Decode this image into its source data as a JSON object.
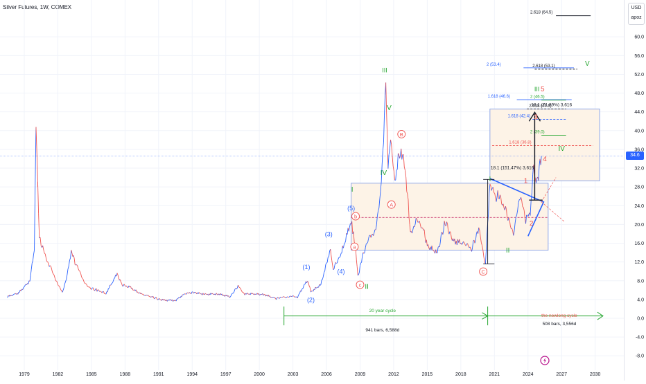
{
  "header": {
    "title": "Silver Futures, 1W, COMEX"
  },
  "axis_panel": {
    "currency": "USD",
    "scale_mode": "apoz",
    "last_price": "34.6"
  },
  "colors": {
    "candle_up": "#2962ff",
    "candle_down": "#ef5350",
    "wave_green": "#26a631",
    "wave_blue": "#2962ff",
    "wave_red": "#ef5350",
    "box_fill": "#fdf3e7",
    "box_border": "#8fa7e8",
    "grid": "#f0f3fa",
    "fib_blue": "#2962ff",
    "fib_green": "#26a631",
    "fib_red": "#ef5350"
  },
  "chart_data": {
    "type": "candlestick-line",
    "title": "Silver Futures, 1W, COMEX",
    "ylim": [
      -9,
      68
    ],
    "xlim": [
      1977.5,
      2031.5
    ],
    "y_ticks": [
      "60.0",
      "56.0",
      "52.0",
      "48.0",
      "44.0",
      "40.0",
      "36.0",
      "32.0",
      "28.0",
      "24.0",
      "20.0",
      "16.0",
      "12.0",
      "8.0",
      "4.0",
      "0.0",
      "-4.0",
      "-8.0"
    ],
    "x_ticks": [
      {
        "x": 1979,
        "label": "1979"
      },
      {
        "x": 1982,
        "label": "1982"
      },
      {
        "x": 1985,
        "label": "1985"
      },
      {
        "x": 1988,
        "label": "1988"
      },
      {
        "x": 1991,
        "label": "1991"
      },
      {
        "x": 1994,
        "label": "1994"
      },
      {
        "x": 1997,
        "label": "1997"
      },
      {
        "x": 2000,
        "label": "2000"
      },
      {
        "x": 2003,
        "label": "2003"
      },
      {
        "x": 2006,
        "label": "2006"
      },
      {
        "x": 2009,
        "label": "2009"
      },
      {
        "x": 2012,
        "label": "2012"
      },
      {
        "x": 2015,
        "label": "2015"
      },
      {
        "x": 2018,
        "label": "2018"
      },
      {
        "x": 2021,
        "label": "2021"
      },
      {
        "x": 2024,
        "label": "2024"
      },
      {
        "x": 2027,
        "label": "2027"
      },
      {
        "x": 2030,
        "label": "2030"
      }
    ],
    "series": [
      {
        "points": [
          [
            1977.5,
            4.6
          ],
          [
            1978.5,
            5.4
          ],
          [
            1979.5,
            8.0
          ],
          [
            1979.9,
            15.0
          ],
          [
            1980.05,
            41.0
          ],
          [
            1980.2,
            30.0
          ],
          [
            1980.35,
            17.0
          ],
          [
            1980.8,
            14.0
          ],
          [
            1981.3,
            11.0
          ],
          [
            1981.9,
            8.0
          ],
          [
            1982.4,
            5.4
          ],
          [
            1982.9,
            10.0
          ],
          [
            1983.2,
            14.5
          ],
          [
            1983.6,
            11.5
          ],
          [
            1984.2,
            8.5
          ],
          [
            1984.8,
            6.5
          ],
          [
            1985.5,
            6.0
          ],
          [
            1986.3,
            5.3
          ],
          [
            1987.3,
            9.5
          ],
          [
            1987.7,
            7.2
          ],
          [
            1988.5,
            6.5
          ],
          [
            1989.4,
            5.2
          ],
          [
            1990.5,
            4.5
          ],
          [
            1991.2,
            3.9
          ],
          [
            1992.5,
            3.8
          ],
          [
            1993.4,
            5.3
          ],
          [
            1994.2,
            5.5
          ],
          [
            1995.1,
            5.1
          ],
          [
            1996.3,
            5.2
          ],
          [
            1997.4,
            4.6
          ],
          [
            1998.1,
            6.9
          ],
          [
            1998.7,
            5.2
          ],
          [
            1999.6,
            5.2
          ],
          [
            2000.5,
            5.0
          ],
          [
            2001.5,
            4.2
          ],
          [
            2002.2,
            4.6
          ],
          [
            2002.8,
            4.6
          ],
          [
            2003.4,
            4.5
          ],
          [
            2004.3,
            8.2
          ],
          [
            2004.6,
            5.6
          ],
          [
            2005.5,
            7.2
          ],
          [
            2006.35,
            14.8
          ],
          [
            2006.6,
            10.6
          ],
          [
            2007.3,
            13.6
          ],
          [
            2008.2,
            20.8
          ],
          [
            2008.55,
            15.8
          ],
          [
            2008.8,
            8.8
          ],
          [
            2009.2,
            13.0
          ],
          [
            2009.9,
            18.0
          ],
          [
            2010.4,
            18.5
          ],
          [
            2010.9,
            29.0
          ],
          [
            2011.3,
            49.0
          ],
          [
            2011.5,
            33.0
          ],
          [
            2011.8,
            38.0
          ],
          [
            2012.1,
            28.5
          ],
          [
            2012.4,
            35.0
          ],
          [
            2012.8,
            34.5
          ],
          [
            2013.1,
            30.0
          ],
          [
            2013.5,
            18.5
          ],
          [
            2014.0,
            20.5
          ],
          [
            2014.6,
            19.5
          ],
          [
            2015.0,
            15.5
          ],
          [
            2015.9,
            13.9
          ],
          [
            2016.6,
            20.7
          ],
          [
            2017.3,
            16.5
          ],
          [
            2018.3,
            16.0
          ],
          [
            2018.9,
            14.5
          ],
          [
            2019.6,
            18.8
          ],
          [
            2020.2,
            11.6
          ],
          [
            2020.6,
            29.0
          ],
          [
            2021.1,
            25.5
          ],
          [
            2021.5,
            26.5
          ],
          [
            2022.0,
            23.0
          ],
          [
            2022.7,
            18.0
          ],
          [
            2023.3,
            25.5
          ],
          [
            2023.8,
            21.0
          ],
          [
            2024.2,
            23.0
          ],
          [
            2024.5,
            32.0
          ],
          [
            2024.8,
            29.0
          ],
          [
            2025.2,
            34.6
          ]
        ]
      }
    ],
    "annotations": {
      "wave_labels": [
        {
          "text": "I",
          "x": 1980.2,
          "y": 28.0,
          "color": "red",
          "style": "plain"
        },
        {
          "text": "(1)",
          "x": 2004.2,
          "y": 10.5,
          "color": "blue",
          "style": "plain"
        },
        {
          "text": "(2)",
          "x": 2004.6,
          "y": 3.5,
          "color": "blue",
          "style": "plain"
        },
        {
          "text": "(3)",
          "x": 2006.2,
          "y": 17.5,
          "color": "blue",
          "style": "plain"
        },
        {
          "text": "(4)",
          "x": 2007.3,
          "y": 9.5,
          "color": "blue",
          "style": "plain"
        },
        {
          "text": "(5)",
          "x": 2008.2,
          "y": 23.0,
          "color": "blue",
          "style": "plain"
        },
        {
          "text": "b",
          "x": 2008.6,
          "y": 21.3,
          "color": "red",
          "style": "circle"
        },
        {
          "text": "a",
          "x": 2008.5,
          "y": 14.8,
          "color": "red",
          "style": "circle"
        },
        {
          "text": "c",
          "x": 2009.0,
          "y": 6.7,
          "color": "red",
          "style": "circle"
        },
        {
          "text": "II",
          "x": 2009.6,
          "y": 6.3,
          "color": "green",
          "style": "plain"
        },
        {
          "text": "I",
          "x": 2008.3,
          "y": 27.0,
          "color": "green",
          "style": "plain"
        },
        {
          "text": "III",
          "x": 2011.2,
          "y": 52.4,
          "color": "green",
          "style": "plain"
        },
        {
          "text": "V",
          "x": 2011.6,
          "y": 44.4,
          "color": "green",
          "style": "plain"
        },
        {
          "text": "IV",
          "x": 2011.1,
          "y": 30.5,
          "color": "green",
          "style": "plain"
        },
        {
          "text": "A",
          "x": 2011.8,
          "y": 23.8,
          "color": "red",
          "style": "circle"
        },
        {
          "text": "B",
          "x": 2012.7,
          "y": 38.8,
          "color": "red",
          "style": "circle"
        },
        {
          "text": "C",
          "x": 2020.0,
          "y": 9.5,
          "color": "red",
          "style": "circle"
        },
        {
          "text": "I",
          "x": 2020.6,
          "y": 29.2,
          "color": "green",
          "style": "plain"
        },
        {
          "text": "II",
          "x": 2022.2,
          "y": 14.0,
          "color": "green",
          "style": "plain"
        },
        {
          "text": "1",
          "x": 2023.8,
          "y": 28.8,
          "color": "red",
          "style": "plain"
        },
        {
          "text": "2",
          "x": 2024.3,
          "y": 19.8,
          "color": "red",
          "style": "plain"
        },
        {
          "text": "3",
          "x": 2024.7,
          "y": 42.4,
          "color": "red",
          "style": "plain"
        },
        {
          "text": "4",
          "x": 2025.5,
          "y": 33.5,
          "color": "red",
          "style": "plain"
        },
        {
          "text": "III",
          "x": 2024.8,
          "y": 48.4,
          "color": "green",
          "style": "plain"
        },
        {
          "text": "5",
          "x": 2025.3,
          "y": 48.4,
          "color": "red",
          "style": "plain"
        },
        {
          "text": "IV",
          "x": 2027.0,
          "y": 35.7,
          "color": "green",
          "style": "plain"
        },
        {
          "text": "V",
          "x": 2029.3,
          "y": 53.8,
          "color": "green",
          "style": "plain"
        }
      ],
      "fib_levels": [
        {
          "text": "2.618 (64.5)",
          "x1": 2026.5,
          "x2": 2029.6,
          "y": 64.5,
          "color": "dark",
          "dashed": false,
          "label_x": 2024.2
        },
        {
          "text": "2 (53.4)",
          "x1": 2023.6,
          "x2": 2028.1,
          "y": 53.4,
          "color": "blue",
          "dashed": false,
          "label_x": 2020.3
        },
        {
          "text": "2.618 (53.1)",
          "x1": 2024.6,
          "x2": 2028.4,
          "y": 53.1,
          "color": "dark",
          "dashed": true,
          "label_x": 2024.4
        },
        {
          "text": "1.618 (46.6)",
          "x1": 2023.0,
          "x2": 2027.9,
          "y": 46.6,
          "color": "blue",
          "dashed": false,
          "label_x": 2020.4
        },
        {
          "text": "2 (46.5)",
          "x1": 2025.2,
          "x2": 2027.4,
          "y": 46.5,
          "color": "green",
          "dashed": false,
          "label_x": 2024.2
        },
        {
          "text": "2.618 (44.6)",
          "x1": 2023.9,
          "x2": 2027.4,
          "y": 44.6,
          "color": "dark",
          "dashed": true,
          "label_x": 2024.1
        },
        {
          "text": "1.618 (42.4)",
          "x1": 2024.4,
          "x2": 2027.4,
          "y": 42.4,
          "color": "blue",
          "dashed": true,
          "label_x": 2022.2
        },
        {
          "text": "2 (39.0)",
          "x1": 2025.2,
          "x2": 2027.4,
          "y": 39.0,
          "color": "green",
          "dashed": false,
          "label_x": 2024.2
        },
        {
          "text": "1.618 (36.8)",
          "x1": 2020.8,
          "x2": 2029.8,
          "y": 36.8,
          "color": "red",
          "dashed": true,
          "label_x": 2022.3
        }
      ],
      "texts": [
        {
          "text": "18.1 (151.47%) 3,616",
          "x": 2022.6,
          "y": 31.8,
          "color": "dark"
        },
        {
          "text": "18.1 (71.89%) 3,616",
          "x": 2026.1,
          "y": 45.2,
          "color": "dark"
        },
        {
          "text": "20 year cycle",
          "x": 2011.0,
          "y": 1.3,
          "color": "green"
        },
        {
          "text": "941 bars, 6,588d",
          "x": 2011.0,
          "y": -2.8,
          "color": "dark"
        },
        {
          "text": "the newlong cycle",
          "x": 2026.8,
          "y": 0.3,
          "color": "red"
        },
        {
          "text": "508 bars, 3,556d",
          "x": 2026.8,
          "y": -1.5,
          "color": "dark"
        }
      ]
    }
  }
}
